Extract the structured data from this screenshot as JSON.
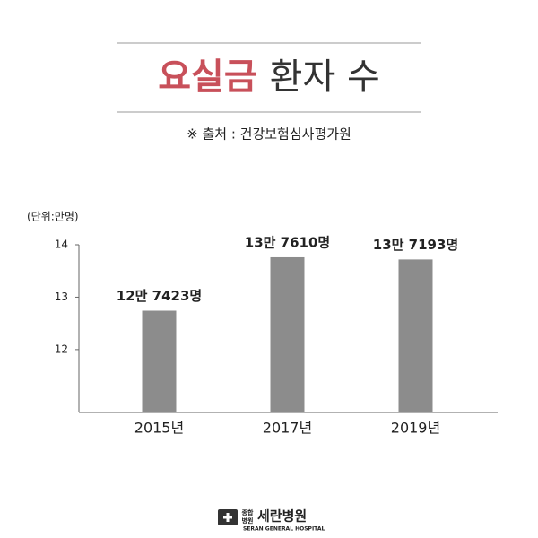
{
  "chart_data": {
    "type": "bar",
    "title_highlight": "요실금",
    "title_rest": "환자 수",
    "source": "※ 출처 : 건강보험심사평가원",
    "unit_label": "(단위:만명)",
    "categories": [
      "2015년",
      "2017년",
      "2019년"
    ],
    "values": [
      12.7423,
      13.761,
      13.7193
    ],
    "value_labels": [
      "12만 7423명",
      "13만 7610명",
      "13만 7193명"
    ],
    "color": "#8c8c8c",
    "ylim": [
      10.8,
      14
    ],
    "yticks": [
      12,
      13,
      14
    ],
    "grid": false
  },
  "footer": {
    "logo_small_top": "종합",
    "logo_small_bottom": "병원",
    "logo_name": "세란병원",
    "logo_english": "SERAN GENERAL HOSPITAL"
  }
}
